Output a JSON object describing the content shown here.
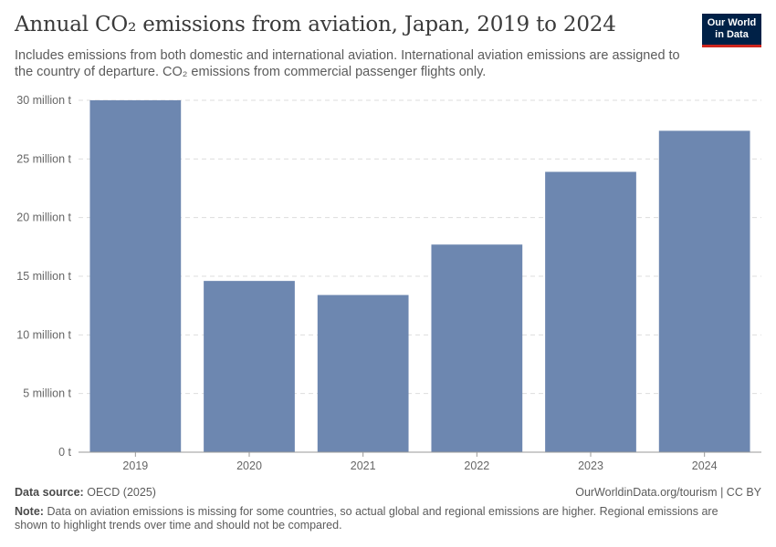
{
  "header": {
    "title": "Annual CO₂ emissions from aviation, Japan, 2019 to 2024",
    "subtitle": "Includes emissions from both domestic and international aviation. International aviation emissions are assigned to the country of departure. CO₂ emissions from commercial passenger flights only."
  },
  "logo": {
    "line1": "Our World",
    "line2": "in Data",
    "bg_color": "#002147",
    "accent_color": "#ce261e"
  },
  "footer": {
    "source_label": "Data source:",
    "source_value": "OECD (2025)",
    "license": "OurWorldinData.org/tourism | CC BY",
    "note_label": "Note:",
    "note_value": "Data on aviation emissions is missing for some countries, so actual global and regional emissions are higher. Regional emissions are shown to highlight trends over time and should not be compared."
  },
  "chart_data": {
    "type": "bar",
    "title": "Annual CO₂ emissions from aviation, Japan, 2019 to 2024",
    "categories": [
      "2019",
      "2020",
      "2021",
      "2022",
      "2023",
      "2024"
    ],
    "values": [
      30.0,
      14.6,
      13.4,
      17.7,
      23.9,
      27.4
    ],
    "unit": "million t",
    "ylim": [
      0,
      30
    ],
    "yticks": [
      0,
      5,
      10,
      15,
      20,
      25,
      30
    ],
    "ytick_labels": [
      "0 t",
      "5 million t",
      "10 million t",
      "15 million t",
      "20 million t",
      "25 million t",
      "30 million t"
    ],
    "xlabel": "",
    "ylabel": "",
    "grid": true,
    "bar_color": "#6d87b0"
  }
}
